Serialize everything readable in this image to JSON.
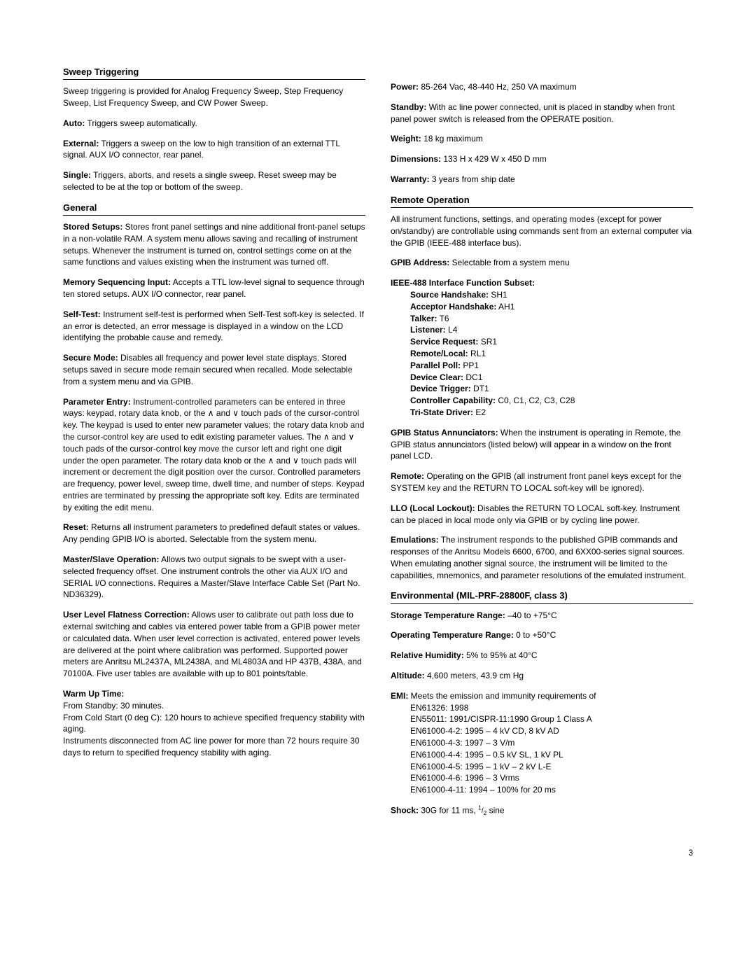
{
  "left": {
    "sweep_title": "Sweep Triggering",
    "sweep_intro": "Sweep triggering is provided for Analog Frequency Sweep, Step Frequency Sweep, List Frequency Sweep, and CW Power Sweep.",
    "auto_label": "Auto:",
    "auto_text": " Triggers sweep automatically.",
    "external_label": "External:",
    "external_text": " Triggers a sweep on the low to high transition of an external TTL signal. AUX I/O connector, rear panel.",
    "single_label": "Single:",
    "single_text": " Triggers, aborts, and resets a single sweep. Reset sweep may be selected to be at the top or bottom of the sweep.",
    "general_title": "General",
    "stored_setups_label": "Stored Setups:",
    "stored_setups_text": " Stores front panel settings and nine additional front-panel setups in a non-volatile RAM. A system menu allows saving and recalling of instrument setups. Whenever the instrument is turned on, control settings come on at the same functions and values existing when the instrument was turned off.",
    "memseq_label": "Memory Sequencing Input:",
    "memseq_text": " Accepts a TTL low-level signal to sequence through ten stored setups. AUX I/O connector, rear panel.",
    "selftest_label": "Self-Test:",
    "selftest_text": " Instrument self-test is performed when Self-Test soft-key is selected. If an error is detected, an error message is displayed in a window on the LCD identifying the probable cause and remedy.",
    "secure_label": "Secure Mode:",
    "secure_text": " Disables all frequency and power level state displays. Stored setups saved in secure mode remain secured when recalled. Mode selectable from a system menu and via GPIB.",
    "param_label": "Parameter Entry:",
    "param_text": " Instrument-controlled parameters can be entered in three ways: keypad, rotary data knob, or the ∧ and ∨ touch pads of the cursor-control key. The keypad is used to enter new parameter values; the rotary data knob and the cursor-control key are used to edit existing parameter values. The ∧ and ∨ touch pads of the cursor-control key move the cursor left and right one digit under the open parameter. The rotary data knob or the ∧ and ∨ touch pads will increment or decrement the digit position over the cursor. Controlled parameters are frequency, power level, sweep time, dwell time, and number of steps. Keypad entries are terminated by pressing the appropriate soft key. Edits are terminated by exiting the edit menu.",
    "reset_label": "Reset:",
    "reset_text": " Returns all instrument parameters to predefined default states or values. Any pending GPIB I/O is aborted. Selectable from the system menu.",
    "master_label": "Master/Slave Operation:",
    "master_text": " Allows two output signals to be swept with a user-selected frequency offset. One instrument controls the other via AUX I/O and SERIAL I/O connections. Requires a Master/Slave Interface Cable Set (Part No. ND36329).",
    "userlevel_label": "User Level Flatness Correction:",
    "userlevel_text": " Allows user to calibrate out path loss due to external switching and cables via entered power table from a GPIB power meter or calculated data. When user level correction is activated, entered power levels are delivered at the point where calibration was performed. Supported power meters are Anritsu ML2437A, ML2438A, and ML4803A and HP 437B, 438A, and 70100A. Five user tables are available with up to 801 points/table.",
    "warmup_label": "Warm Up Time:",
    "warmup_l1": "From Standby: 30 minutes.",
    "warmup_l2": "From Cold Start (0 deg C): 120 hours to achieve specified frequency stability with aging.",
    "warmup_l3": "Instruments disconnected from AC line power for more than 72 hours require 30 days to return to specified frequency stability with aging."
  },
  "right": {
    "power_label": "Power:",
    "power_text": " 85-264 Vac, 48-440 Hz, 250 VA maximum",
    "standby_label": "Standby:",
    "standby_text": " With ac line power connected, unit is placed in standby when front panel power switch is released from the OPERATE position.",
    "weight_label": "Weight:",
    "weight_text": " 18 kg maximum",
    "dim_label": "Dimensions:",
    "dim_text": " 133 H x 429 W x 450 D mm",
    "warranty_label": "Warranty:",
    "warranty_text": " 3 years from ship date",
    "remote_title": "Remote Operation",
    "remote_intro": "All instrument functions, settings, and operating modes (except for power on/standby) are controllable using commands sent from an external computer via the GPIB (IEEE-488 interface bus).",
    "gpibaddr_label": "GPIB Address:",
    "gpibaddr_text": " Selectable from a system menu",
    "ieee_label": "IEEE-488 Interface Function Subset:",
    "ieee_items": [
      {
        "l": "Source Handshake:",
        "t": " SH1"
      },
      {
        "l": "Acceptor Handshake:",
        "t": " AH1"
      },
      {
        "l": "Talker:",
        "t": " T6"
      },
      {
        "l": "Listener:",
        "t": " L4"
      },
      {
        "l": "Service Request:",
        "t": " SR1"
      },
      {
        "l": "Remote/Local:",
        "t": " RL1"
      },
      {
        "l": "Parallel Poll:",
        "t": " PP1"
      },
      {
        "l": "Device Clear:",
        "t": " DC1"
      },
      {
        "l": "Device Trigger:",
        "t": " DT1"
      },
      {
        "l": "Controller Capability:",
        "t": " C0, C1, C2, C3, C28"
      },
      {
        "l": "Tri-State Driver:",
        "t": " E2"
      }
    ],
    "gpibstat_label": "GPIB Status Annunciators:",
    "gpibstat_text": " When the instrument is operating in Remote, the GPIB status annunciators (listed below) will appear in a window on the front panel LCD.",
    "remotekey_label": "Remote:",
    "remotekey_text": " Operating on the GPIB (all instrument front panel keys except for the SYSTEM key and the RETURN TO LOCAL soft-key will be ignored).",
    "llo_label": "LLO (Local Lockout):",
    "llo_text": " Disables the RETURN TO LOCAL soft-key. Instrument can be placed in local mode only via GPIB or by cycling line power.",
    "emul_label": "Emulations:",
    "emul_text": " The instrument responds to the published GPIB commands and responses of the Anritsu Models 6600, 6700, and 6XX00-series signal sources. When emulating another signal source, the instrument will be limited to the capabilities, mnemonics, and parameter resolutions of the emulated instrument.",
    "env_title": "Environmental (MIL-PRF-28800F, class 3)",
    "storage_label": "Storage Temperature Range:",
    "storage_text": " –40 to +75°C",
    "optemp_label": "Operating Temperature Range:",
    "optemp_text": " 0 to +50°C",
    "relhum_label": "Relative Humidity:",
    "relhum_text": " 5% to 95% at 40°C",
    "alt_label": "Altitude:",
    "alt_text": " 4,600 meters, 43.9 cm Hg",
    "emi_label": "EMI:",
    "emi_text": " Meets the emission and immunity requirements of",
    "emi_items": [
      "EN61326: 1998",
      "EN55011: 1991/CISPR-11:1990 Group 1 Class A",
      "EN61000-4-2: 1995 – 4 kV CD, 8 kV AD",
      "EN61000-4-3: 1997 – 3 V/m",
      "EN61000-4-4: 1995 – 0.5 kV SL, 1 kV PL",
      "EN61000-4-5: 1995 – 1 kV – 2 kV L-E",
      "EN61000-4-6: 1996 – 3 Vrms",
      "EN61000-4-11: 1994 – 100% for 20 ms"
    ],
    "shock_label": "Shock:",
    "shock_text_a": " 30G for 11 ms, ",
    "shock_half": "1/2",
    "shock_text_b": " sine"
  },
  "page_number": "3"
}
